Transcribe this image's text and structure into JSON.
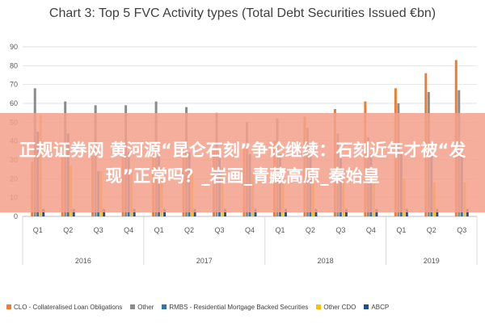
{
  "chart_data": {
    "type": "bar",
    "title": "Chart 3: Top 5 FVC Activity types (Total Debt Securities Issued €bn)",
    "ylim": [
      0,
      90
    ],
    "yticks": [
      0,
      10,
      20,
      30,
      40,
      50,
      60,
      70,
      80,
      90
    ],
    "grid": true,
    "legend_position": "bottom",
    "categories": [
      "Q1",
      "Q2",
      "Q3",
      "Q4",
      "Q1",
      "Q2",
      "Q3",
      "Q4",
      "Q1",
      "Q2",
      "Q3",
      "Q4",
      "Q1",
      "Q2",
      "Q3"
    ],
    "year_groups": [
      {
        "label": "2016",
        "count": 4
      },
      {
        "label": "2017",
        "count": 4
      },
      {
        "label": "2018",
        "count": 4
      },
      {
        "label": "2019",
        "count": 3
      }
    ],
    "series": [
      {
        "name": "CLO - Collateralised Loan Obligations",
        "color": "#ed7d31",
        "values": [
          29,
          32,
          32,
          33,
          35,
          35,
          35,
          36,
          40,
          53,
          57,
          61,
          68,
          76,
          83
        ]
      },
      {
        "name": "Other",
        "color": "#8c8c8c",
        "values": [
          68,
          61,
          59,
          59,
          61,
          58,
          55,
          50,
          52,
          47,
          44,
          42,
          60,
          66,
          67
        ]
      },
      {
        "name": "RMBS - Residential Mortgage Backed Securities",
        "color": "#2e75b6",
        "values": [
          45,
          44,
          24,
          34,
          34,
          34,
          34,
          33,
          33,
          33,
          33,
          33,
          33,
          33,
          33
        ]
      },
      {
        "name": "Other CDO",
        "color": "#ffc000",
        "values": [
          54,
          27,
          24,
          24,
          26,
          23,
          26,
          23,
          20,
          21,
          21,
          22,
          20,
          18,
          18
        ]
      },
      {
        "name": "ABCP",
        "color": "#1f4e99",
        "values": [
          4,
          4,
          4,
          4,
          4,
          4,
          4,
          4,
          4,
          4,
          4,
          4,
          4,
          4,
          4
        ]
      }
    ]
  },
  "overlay": {
    "text": "正规证券网 黄河源“昆仑石刻”争论继续：石刻近年才被“发现”正常吗？_岩画_青藏高原_秦始皇"
  }
}
